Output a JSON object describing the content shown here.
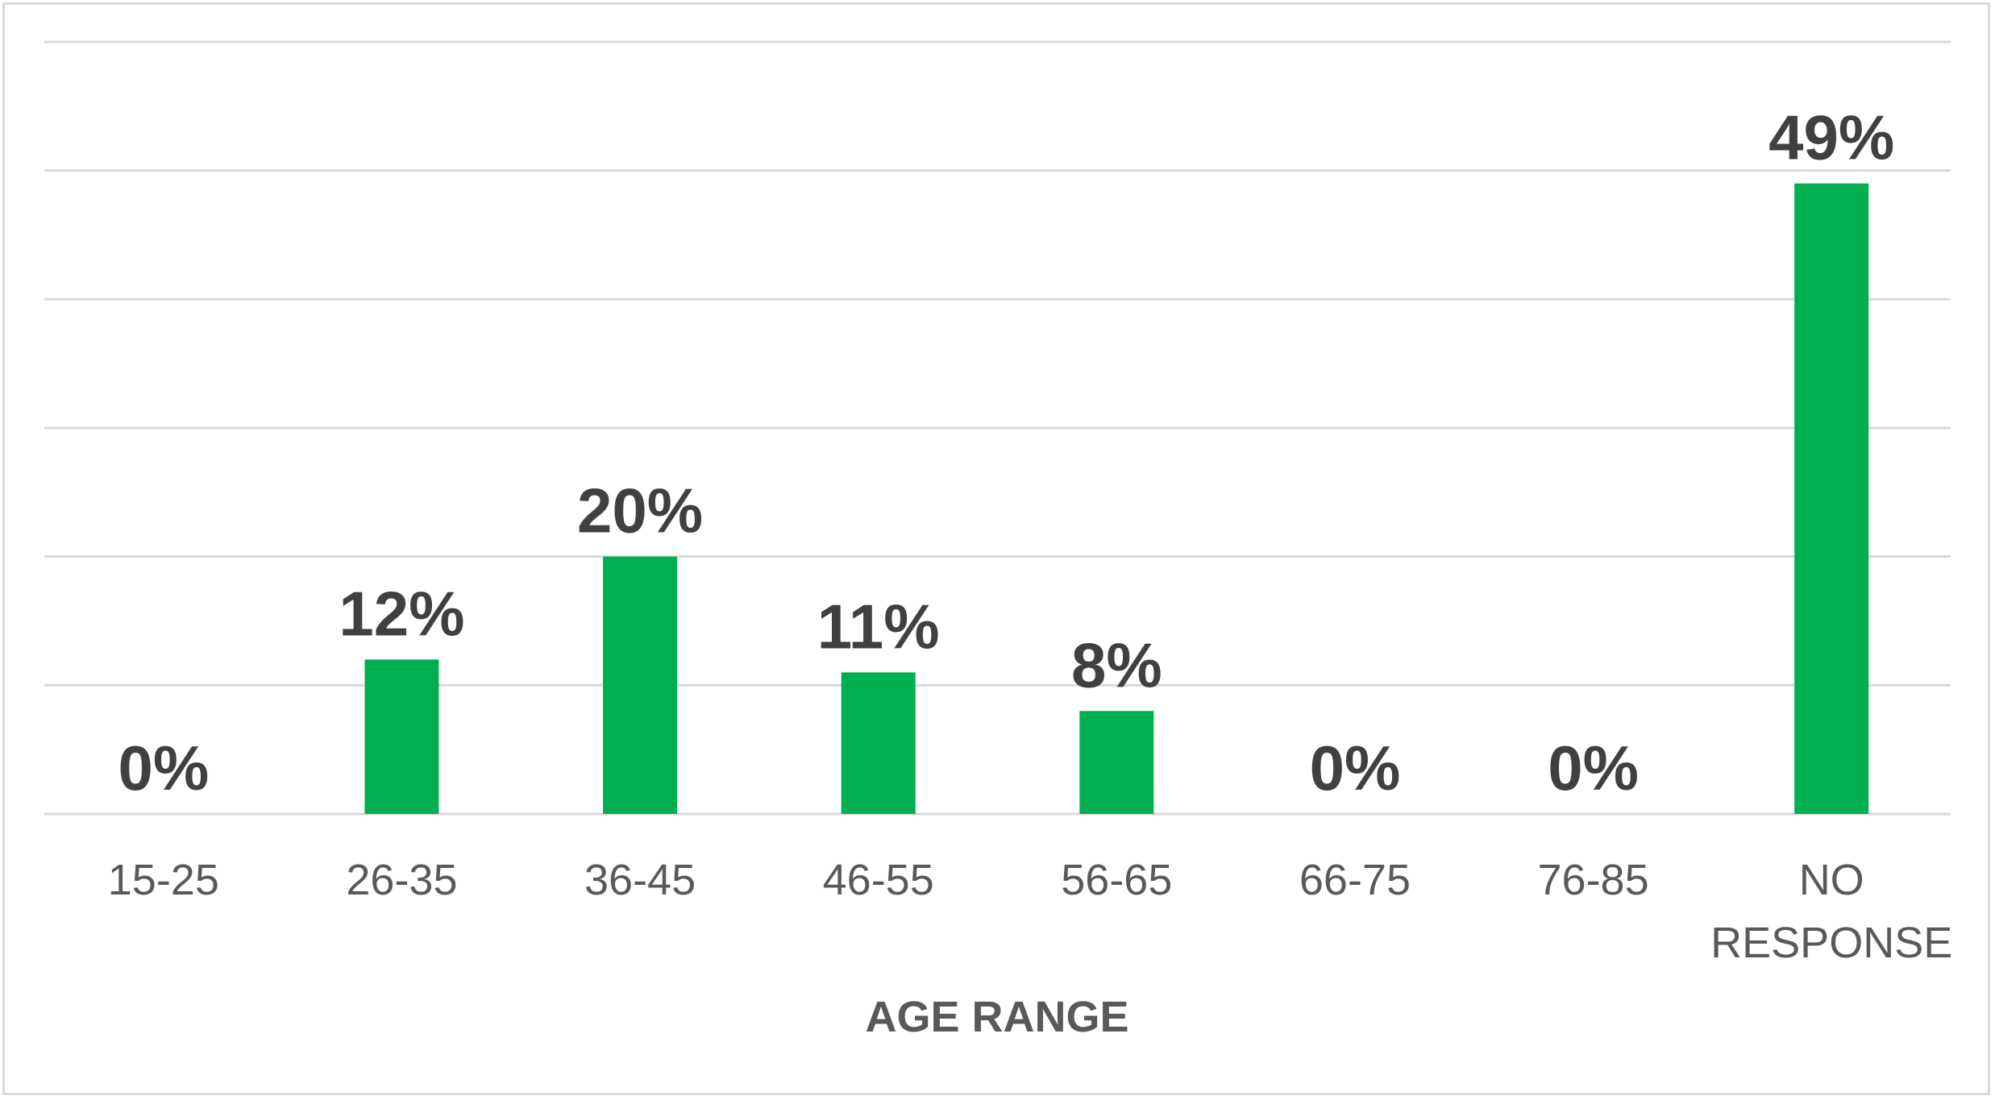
{
  "chart_data": {
    "type": "bar",
    "xlabel": "AGE RANGE",
    "ylabel": "",
    "categories": [
      "15-25",
      "26-35",
      "36-45",
      "46-55",
      "56-65",
      "66-75",
      "76-85",
      "NO RESPONSE"
    ],
    "values": [
      0,
      12,
      20,
      11,
      8,
      0,
      0,
      49
    ],
    "data_labels": [
      "0%",
      "12%",
      "20%",
      "11%",
      "8%",
      "0%",
      "0%",
      "49%"
    ],
    "ylim": [
      0,
      60
    ],
    "ytick_step": 10,
    "y_axis_labels_shown": false,
    "grid": true,
    "legend": "none",
    "bar_color": "#00b050",
    "grid_color": "#d9d9d9"
  }
}
